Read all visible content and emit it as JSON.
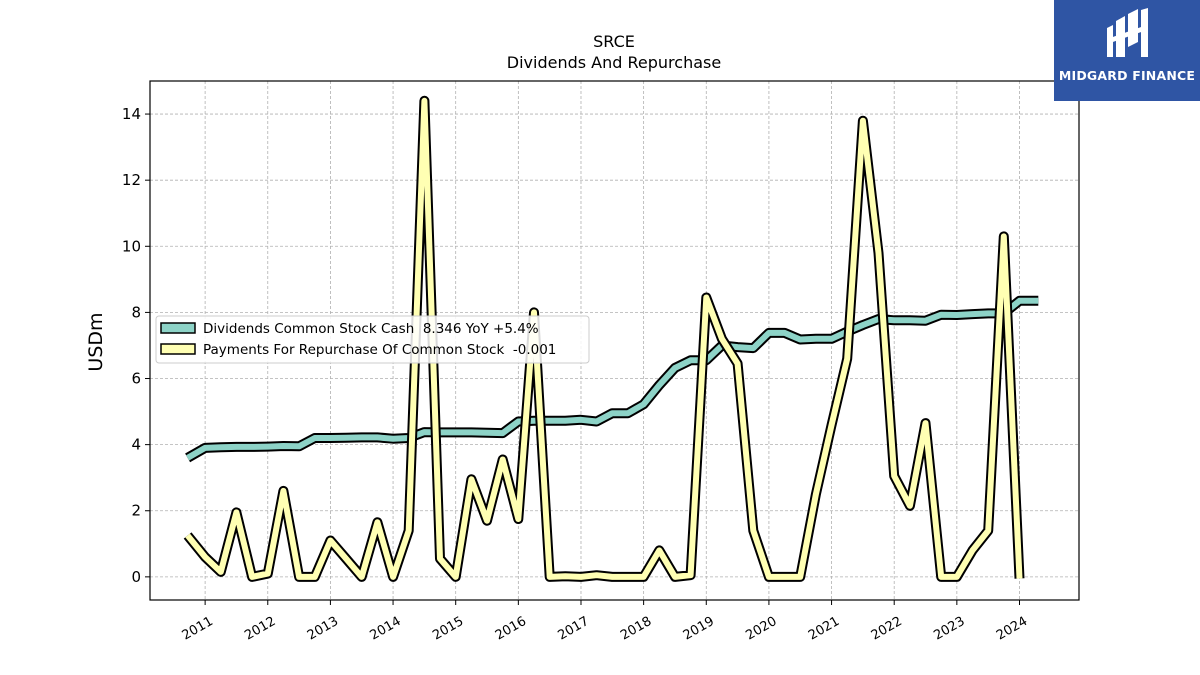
{
  "chart_data": {
    "type": "line",
    "title": "SRCE",
    "subtitle": "Dividends And Repurchase",
    "ylabel": "USDm",
    "xlabel": "",
    "ylim": [
      -0.7,
      15.0
    ],
    "xlim": [
      2010.12,
      2024.95
    ],
    "yticks": [
      0,
      2,
      4,
      6,
      8,
      10,
      12,
      14
    ],
    "xticks": [
      "2011",
      "2012",
      "2013",
      "2014",
      "2015",
      "2016",
      "2017",
      "2018",
      "2019",
      "2020",
      "2021",
      "2022",
      "2023",
      "2024"
    ],
    "grid": true,
    "legend_position": "center-left",
    "legend": [
      "Dividends Common Stock Cash  8.346 YoY +5.4%",
      "Payments For Repurchase Of Common Stock  -0.001"
    ],
    "series": [
      {
        "name": "Dividends Common Stock Cash",
        "color": "#8dd3c7",
        "points": [
          [
            2010.72,
            3.6
          ],
          [
            2011.0,
            3.9
          ],
          [
            2011.25,
            3.92
          ],
          [
            2011.5,
            3.93
          ],
          [
            2011.75,
            3.93
          ],
          [
            2012.0,
            3.94
          ],
          [
            2012.25,
            3.96
          ],
          [
            2012.5,
            3.95
          ],
          [
            2012.75,
            4.2
          ],
          [
            2013.0,
            4.2
          ],
          [
            2013.25,
            4.21
          ],
          [
            2013.5,
            4.22
          ],
          [
            2013.75,
            4.22
          ],
          [
            2014.0,
            4.18
          ],
          [
            2014.25,
            4.2
          ],
          [
            2014.5,
            4.38
          ],
          [
            2014.75,
            4.37
          ],
          [
            2015.0,
            4.37
          ],
          [
            2015.25,
            4.37
          ],
          [
            2015.5,
            4.36
          ],
          [
            2015.75,
            4.35
          ],
          [
            2016.0,
            4.7
          ],
          [
            2016.25,
            4.72
          ],
          [
            2016.5,
            4.72
          ],
          [
            2016.75,
            4.72
          ],
          [
            2017.0,
            4.75
          ],
          [
            2017.25,
            4.7
          ],
          [
            2017.5,
            4.95
          ],
          [
            2017.75,
            4.95
          ],
          [
            2018.0,
            5.22
          ],
          [
            2018.25,
            5.8
          ],
          [
            2018.5,
            6.32
          ],
          [
            2018.75,
            6.55
          ],
          [
            2019.0,
            6.55
          ],
          [
            2019.25,
            7.0
          ],
          [
            2019.5,
            6.95
          ],
          [
            2019.75,
            6.92
          ],
          [
            2020.0,
            7.38
          ],
          [
            2020.25,
            7.38
          ],
          [
            2020.5,
            7.18
          ],
          [
            2020.75,
            7.2
          ],
          [
            2021.0,
            7.2
          ],
          [
            2021.25,
            7.42
          ],
          [
            2021.5,
            7.62
          ],
          [
            2021.75,
            7.8
          ],
          [
            2022.0,
            7.76
          ],
          [
            2022.25,
            7.76
          ],
          [
            2022.5,
            7.75
          ],
          [
            2022.75,
            7.93
          ],
          [
            2023.0,
            7.92
          ],
          [
            2023.25,
            7.95
          ],
          [
            2023.5,
            7.97
          ],
          [
            2023.75,
            7.97
          ],
          [
            2024.0,
            8.35
          ],
          [
            2024.3,
            8.35
          ]
        ]
      },
      {
        "name": "Payments For Repurchase Of Common Stock",
        "color": "#ffffb3",
        "points": [
          [
            2010.72,
            1.25
          ],
          [
            2011.0,
            0.6
          ],
          [
            2011.25,
            0.15
          ],
          [
            2011.5,
            1.95
          ],
          [
            2011.75,
            0.0
          ],
          [
            2012.0,
            0.1
          ],
          [
            2012.25,
            2.6
          ],
          [
            2012.5,
            0.0
          ],
          [
            2012.75,
            0.0
          ],
          [
            2013.0,
            1.1
          ],
          [
            2013.25,
            0.55
          ],
          [
            2013.5,
            0.0
          ],
          [
            2013.75,
            1.65
          ],
          [
            2014.0,
            0.0
          ],
          [
            2014.25,
            1.4
          ],
          [
            2014.5,
            14.4
          ],
          [
            2014.75,
            0.55
          ],
          [
            2015.0,
            0.0
          ],
          [
            2015.25,
            2.95
          ],
          [
            2015.5,
            1.7
          ],
          [
            2015.75,
            3.55
          ],
          [
            2016.0,
            1.75
          ],
          [
            2016.25,
            8.0
          ],
          [
            2016.5,
            0.0
          ],
          [
            2016.75,
            0.02
          ],
          [
            2017.0,
            0.0
          ],
          [
            2017.25,
            0.05
          ],
          [
            2017.5,
            0.0
          ],
          [
            2017.75,
            0.0
          ],
          [
            2018.0,
            0.0
          ],
          [
            2018.25,
            0.8
          ],
          [
            2018.5,
            0.0
          ],
          [
            2018.75,
            0.05
          ],
          [
            2019.0,
            8.45
          ],
          [
            2019.25,
            7.2
          ],
          [
            2019.5,
            6.45
          ],
          [
            2019.75,
            1.4
          ],
          [
            2020.0,
            0.0
          ],
          [
            2020.25,
            0.0
          ],
          [
            2020.5,
            0.0
          ],
          [
            2020.75,
            2.5
          ],
          [
            2021.0,
            4.6
          ],
          [
            2021.25,
            6.6
          ],
          [
            2021.5,
            13.8
          ],
          [
            2021.75,
            9.8
          ],
          [
            2022.0,
            3.05
          ],
          [
            2022.25,
            2.15
          ],
          [
            2022.5,
            4.65
          ],
          [
            2022.75,
            0.0
          ],
          [
            2023.0,
            0.0
          ],
          [
            2023.25,
            0.8
          ],
          [
            2023.5,
            1.4
          ],
          [
            2023.75,
            10.3
          ],
          [
            2024.0,
            -0.05
          ]
        ]
      }
    ]
  },
  "logo": {
    "text": "MIDGARD FINANCE",
    "color": "#2f55a4"
  }
}
